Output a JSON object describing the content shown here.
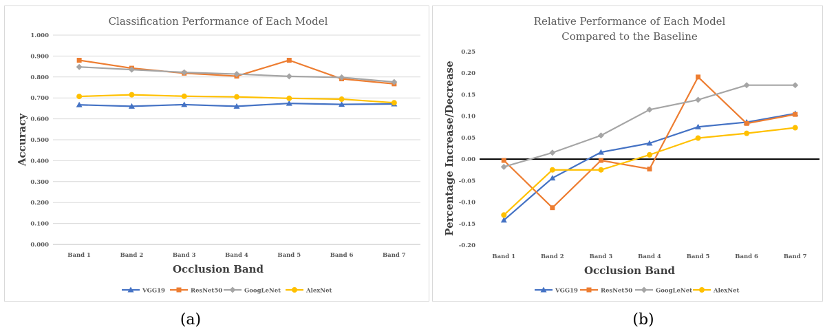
{
  "chart_data": [
    {
      "type": "line",
      "title": "Classification Performance of Each Model",
      "xlabel": "Occlusion Band",
      "ylabel": "Accuracy",
      "ylim": [
        0,
        1
      ],
      "yticks": [
        "0.000",
        "0.100",
        "0.200",
        "0.300",
        "0.400",
        "0.500",
        "0.600",
        "0.700",
        "0.800",
        "0.900",
        "1.000"
      ],
      "categories": [
        "Band 1",
        "Band 2",
        "Band 3",
        "Band 4",
        "Band 5",
        "Band 6",
        "Band 7"
      ],
      "grid": "horizontal",
      "legend": "bottom",
      "series": [
        {
          "name": "VGG19",
          "color": "#4472c4",
          "marker": "triangle",
          "values": [
            0.667,
            0.66,
            0.668,
            0.66,
            0.674,
            0.669,
            0.671
          ]
        },
        {
          "name": "ResNet50",
          "color": "#ed7d31",
          "marker": "square",
          "values": [
            0.88,
            0.842,
            0.818,
            0.804,
            0.88,
            0.791,
            0.767
          ]
        },
        {
          "name": "GoogLeNet",
          "color": "#a5a5a5",
          "marker": "diamond",
          "values": [
            0.848,
            0.835,
            0.822,
            0.814,
            0.803,
            0.798,
            0.776
          ]
        },
        {
          "name": "AlexNet",
          "color": "#ffc000",
          "marker": "circle",
          "values": [
            0.707,
            0.715,
            0.708,
            0.705,
            0.698,
            0.694,
            0.677
          ]
        }
      ]
    },
    {
      "type": "line",
      "title": "Relative Performance of Each Model",
      "subtitle": "Compared to the Baseline",
      "xlabel": "Occlusion Band",
      "ylabel": "Percentage Increase/Decrease",
      "ylim": [
        -0.2,
        0.25
      ],
      "yticks": [
        "-0.20",
        "-0.15",
        "-0.10",
        "-0.05",
        "0.00",
        "0.05",
        "0.10",
        "0.15",
        "0.20",
        "0.25"
      ],
      "categories": [
        "Band 1",
        "Band 2",
        "Band 3",
        "Band 4",
        "Band 5",
        "Band 6",
        "Band 7"
      ],
      "grid": "none",
      "zero_line": true,
      "legend": "bottom",
      "series": [
        {
          "name": "VGG19",
          "color": "#4472c4",
          "marker": "triangle",
          "values": [
            -0.142,
            -0.044,
            0.016,
            0.037,
            0.075,
            0.086,
            0.106
          ]
        },
        {
          "name": "ResNet50",
          "color": "#ed7d31",
          "marker": "square",
          "values": [
            -0.003,
            -0.113,
            -0.003,
            -0.023,
            0.191,
            0.083,
            0.104
          ]
        },
        {
          "name": "GoogLeNet",
          "color": "#a5a5a5",
          "marker": "diamond",
          "values": [
            -0.018,
            0.015,
            0.055,
            0.115,
            0.138,
            0.172,
            0.172
          ]
        },
        {
          "name": "AlexNet",
          "color": "#ffc000",
          "marker": "circle",
          "values": [
            -0.13,
            -0.025,
            -0.025,
            0.01,
            0.049,
            0.06,
            0.073
          ]
        }
      ]
    }
  ],
  "captions": {
    "a": "(a)",
    "b": "(b)"
  }
}
